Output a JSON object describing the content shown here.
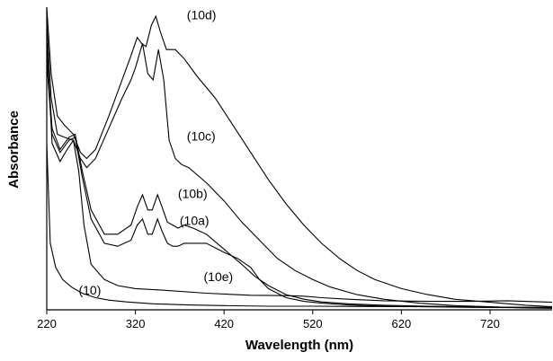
{
  "chart_data": {
    "type": "line",
    "xlabel": "Wavelength (nm)",
    "ylabel": "Absorbance",
    "xlim": [
      220,
      790
    ],
    "ylim": [
      0,
      1
    ],
    "xticks": [
      "220",
      "320",
      "420",
      "520",
      "620",
      "720"
    ],
    "grid": false,
    "series": [
      {
        "name": "(10d)",
        "x": [
          220,
          225,
          232,
          240,
          250,
          258,
          265,
          275,
          290,
          305,
          315,
          322,
          327,
          332,
          338,
          343,
          348,
          355,
          365,
          375,
          390,
          410,
          430,
          450,
          470,
          490,
          510,
          530,
          550,
          570,
          590,
          620,
          650,
          680,
          720,
          760,
          790
        ],
        "y": [
          1.0,
          0.78,
          0.64,
          0.61,
          0.58,
          0.52,
          0.5,
          0.53,
          0.64,
          0.76,
          0.84,
          0.9,
          0.88,
          0.87,
          0.94,
          0.97,
          0.92,
          0.86,
          0.86,
          0.83,
          0.77,
          0.7,
          0.61,
          0.52,
          0.43,
          0.35,
          0.28,
          0.22,
          0.17,
          0.13,
          0.1,
          0.07,
          0.05,
          0.035,
          0.025,
          0.015,
          0.01
        ]
      },
      {
        "name": "(10c)",
        "x": [
          220,
          225,
          232,
          240,
          250,
          258,
          265,
          275,
          290,
          305,
          315,
          320,
          328,
          334,
          340,
          346,
          352,
          358,
          365,
          372,
          380,
          400,
          420,
          440,
          460,
          480,
          500,
          520,
          540,
          570,
          600,
          640,
          680,
          720,
          760,
          790
        ],
        "y": [
          0.95,
          0.7,
          0.58,
          0.57,
          0.56,
          0.5,
          0.47,
          0.5,
          0.6,
          0.7,
          0.76,
          0.8,
          0.88,
          0.78,
          0.76,
          0.86,
          0.76,
          0.56,
          0.5,
          0.48,
          0.47,
          0.42,
          0.36,
          0.29,
          0.23,
          0.17,
          0.13,
          0.1,
          0.075,
          0.05,
          0.035,
          0.022,
          0.014,
          0.01,
          0.006,
          0.005
        ]
      },
      {
        "name": "(10b)",
        "x": [
          220,
          226,
          235,
          245,
          252,
          260,
          270,
          285,
          300,
          315,
          322,
          328,
          334,
          339,
          345,
          350,
          356,
          362,
          368,
          375,
          385,
          400,
          420,
          440,
          455,
          470,
          490,
          510,
          530,
          560,
          600,
          650,
          700,
          750,
          790
        ],
        "y": [
          0.85,
          0.6,
          0.53,
          0.57,
          0.58,
          0.46,
          0.33,
          0.25,
          0.25,
          0.28,
          0.34,
          0.38,
          0.33,
          0.33,
          0.38,
          0.34,
          0.29,
          0.28,
          0.27,
          0.28,
          0.27,
          0.25,
          0.2,
          0.15,
          0.11,
          0.08,
          0.05,
          0.035,
          0.026,
          0.02,
          0.015,
          0.012,
          0.01,
          0.008,
          0.007
        ]
      },
      {
        "name": "(10a)",
        "x": [
          220,
          226,
          235,
          245,
          252,
          260,
          270,
          285,
          300,
          315,
          322,
          328,
          334,
          339,
          345,
          350,
          356,
          362,
          368,
          375,
          385,
          400,
          420,
          435,
          450,
          460,
          470,
          490,
          510,
          530,
          560,
          600,
          650,
          700,
          750,
          790
        ],
        "y": [
          0.82,
          0.58,
          0.52,
          0.56,
          0.57,
          0.44,
          0.3,
          0.22,
          0.21,
          0.23,
          0.28,
          0.3,
          0.25,
          0.25,
          0.3,
          0.26,
          0.22,
          0.21,
          0.21,
          0.22,
          0.22,
          0.22,
          0.19,
          0.17,
          0.14,
          0.1,
          0.07,
          0.04,
          0.028,
          0.022,
          0.016,
          0.012,
          0.01,
          0.008,
          0.007,
          0.006
        ]
      },
      {
        "name": "(10e)",
        "x": [
          220,
          226,
          235,
          243,
          250,
          256,
          262,
          270,
          285,
          300,
          320,
          350,
          400,
          450,
          490,
          510,
          530,
          560,
          600,
          650,
          700,
          740,
          790
        ],
        "y": [
          0.9,
          0.55,
          0.49,
          0.53,
          0.56,
          0.46,
          0.28,
          0.15,
          0.1,
          0.08,
          0.07,
          0.065,
          0.055,
          0.048,
          0.047,
          0.045,
          0.04,
          0.035,
          0.03,
          0.028,
          0.028,
          0.03,
          0.025
        ]
      },
      {
        "name": "(10)",
        "x": [
          220,
          224,
          230,
          238,
          248,
          260,
          275,
          290,
          310,
          340,
          380,
          420,
          470,
          520,
          580,
          650,
          720,
          790
        ],
        "y": [
          0.55,
          0.22,
          0.14,
          0.1,
          0.075,
          0.055,
          0.04,
          0.032,
          0.026,
          0.02,
          0.016,
          0.014,
          0.012,
          0.012,
          0.011,
          0.01,
          0.009,
          0.008
        ]
      }
    ],
    "annotations": [
      {
        "text": "(10d)",
        "x": 378,
        "y": 0.96
      },
      {
        "text": "(10c)",
        "x": 378,
        "y": 0.56
      },
      {
        "text": "(10b)",
        "x": 368,
        "y": 0.37
      },
      {
        "text": "(10a)",
        "x": 370,
        "y": 0.28
      },
      {
        "text": "(10e)",
        "x": 397,
        "y": 0.095
      },
      {
        "text": "(10)",
        "x": 256,
        "y": 0.05
      }
    ]
  }
}
